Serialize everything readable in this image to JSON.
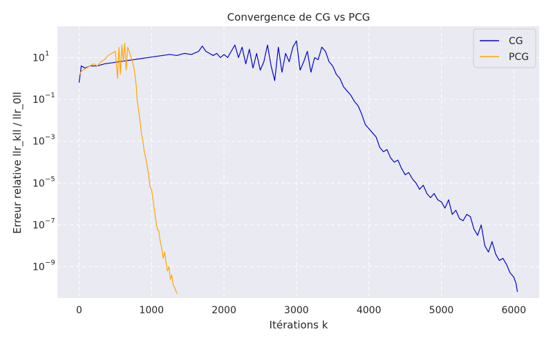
{
  "chart_data": {
    "type": "line",
    "title": "Convergence de CG vs PCG",
    "xlabel": "Itérations k",
    "ylabel": "Erreur relative ||r_k|| / ||r_0||",
    "ylabel_display": "Erreur relative llr_kll / llr_0ll",
    "xlim": [
      -300,
      6350
    ],
    "ylim_log10": [
      -10.5,
      2.5
    ],
    "y_scale": "log",
    "grid": true,
    "legend_position": "top-right",
    "x_ticks": [
      0,
      1000,
      2000,
      3000,
      4000,
      5000,
      6000
    ],
    "x_tick_labels": [
      "0",
      "1000",
      "2000",
      "3000",
      "4000",
      "5000",
      "6000"
    ],
    "y_ticks_exp": [
      1,
      -1,
      -3,
      -5,
      -7,
      -9
    ],
    "series": [
      {
        "name": "CG",
        "color": "#0000cd",
        "x": [
          0,
          30,
          80,
          150,
          250,
          350,
          450,
          550,
          650,
          750,
          850,
          950,
          1050,
          1150,
          1250,
          1350,
          1450,
          1550,
          1650,
          1700,
          1750,
          1800,
          1850,
          1900,
          1950,
          2000,
          2050,
          2100,
          2150,
          2200,
          2250,
          2300,
          2350,
          2400,
          2450,
          2500,
          2550,
          2600,
          2650,
          2700,
          2750,
          2800,
          2850,
          2900,
          2950,
          3000,
          3050,
          3100,
          3150,
          3200,
          3250,
          3300,
          3350,
          3400,
          3450,
          3500,
          3550,
          3600,
          3650,
          3700,
          3750,
          3800,
          3850,
          3900,
          3950,
          4000,
          4050,
          4100,
          4150,
          4200,
          4250,
          4300,
          4350,
          4400,
          4450,
          4500,
          4550,
          4600,
          4650,
          4700,
          4750,
          4800,
          4850,
          4900,
          4950,
          5000,
          5050,
          5100,
          5150,
          5200,
          5250,
          5300,
          5350,
          5400,
          5450,
          5500,
          5550,
          5600,
          5650,
          5700,
          5750,
          5800,
          5850,
          5900,
          5950,
          6000,
          6030,
          6050
        ],
        "log10_y": [
          -0.2,
          0.6,
          0.5,
          0.6,
          0.6,
          0.7,
          0.75,
          0.8,
          0.85,
          0.9,
          0.95,
          1.0,
          1.05,
          1.1,
          1.15,
          1.1,
          1.2,
          1.15,
          1.3,
          1.55,
          1.3,
          1.2,
          1.1,
          1.2,
          1.0,
          1.15,
          1.0,
          1.3,
          1.6,
          1.0,
          1.5,
          0.7,
          1.4,
          0.5,
          1.2,
          0.4,
          0.8,
          1.6,
          0.6,
          -0.1,
          1.5,
          0.3,
          1.2,
          0.8,
          1.5,
          1.8,
          0.4,
          0.8,
          1.3,
          0.3,
          1.0,
          0.9,
          1.5,
          1.3,
          0.8,
          0.6,
          0.2,
          0.0,
          -0.4,
          -0.6,
          -0.8,
          -1.1,
          -1.3,
          -1.7,
          -2.2,
          -2.4,
          -2.6,
          -2.8,
          -3.3,
          -3.5,
          -3.4,
          -3.8,
          -4.0,
          -3.9,
          -4.3,
          -4.6,
          -4.5,
          -4.8,
          -5.0,
          -5.3,
          -5.1,
          -5.5,
          -5.7,
          -5.5,
          -5.8,
          -5.9,
          -6.2,
          -5.8,
          -6.5,
          -6.3,
          -6.7,
          -6.8,
          -6.5,
          -6.6,
          -7.2,
          -7.5,
          -7.0,
          -8.0,
          -8.3,
          -7.8,
          -8.4,
          -8.7,
          -8.6,
          -8.9,
          -9.3,
          -9.5,
          -9.8,
          -10.2
        ]
      },
      {
        "name": "PCG",
        "color": "#ffa500",
        "x": [
          0,
          20,
          50,
          100,
          150,
          200,
          250,
          300,
          350,
          400,
          450,
          500,
          530,
          550,
          570,
          590,
          610,
          630,
          650,
          670,
          690,
          710,
          730,
          750,
          770,
          790,
          800,
          820,
          840,
          860,
          880,
          900,
          920,
          940,
          960,
          980,
          1000,
          1020,
          1040,
          1060,
          1080,
          1100,
          1120,
          1140,
          1160,
          1180,
          1200,
          1220,
          1240,
          1260,
          1280,
          1300,
          1320,
          1340,
          1360
        ],
        "log10_y": [
          0.1,
          0.3,
          0.4,
          0.5,
          0.6,
          0.7,
          0.6,
          0.8,
          0.9,
          1.1,
          1.2,
          1.3,
          0.0,
          1.5,
          0.2,
          1.6,
          0.8,
          1.7,
          0.4,
          1.5,
          1.3,
          1.1,
          0.9,
          0.6,
          0.2,
          -0.4,
          -1.0,
          -1.5,
          -2.0,
          -2.6,
          -3.0,
          -3.5,
          -3.8,
          -4.2,
          -4.6,
          -5.2,
          -5.3,
          -5.8,
          -6.3,
          -6.8,
          -7.2,
          -7.3,
          -7.8,
          -8.1,
          -8.6,
          -8.3,
          -8.8,
          -9.2,
          -9.0,
          -9.6,
          -9.4,
          -9.9,
          -10.0,
          -10.2,
          -10.3
        ]
      }
    ]
  }
}
